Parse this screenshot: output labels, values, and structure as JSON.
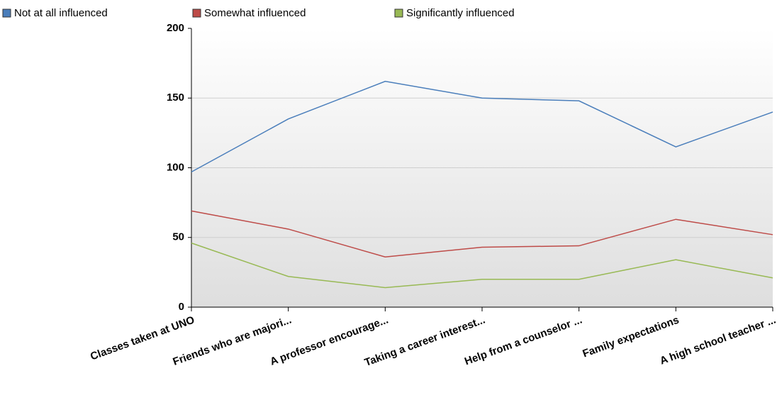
{
  "chart_data": {
    "type": "line",
    "categories": [
      "Classes taken at UNO",
      "Friends who are majori...",
      "A professor encourage...",
      "Taking a career interest...",
      "Help from a counselor ...",
      "Family expectations",
      "A high school teacher ..."
    ],
    "series": [
      {
        "name": "Not at all influenced",
        "color": "#4a7ebb",
        "values": [
          97,
          135,
          162,
          150,
          148,
          115,
          140
        ]
      },
      {
        "name": "Somewhat influenced",
        "color": "#be4b48",
        "values": [
          69,
          56,
          36,
          43,
          44,
          63,
          52
        ]
      },
      {
        "name": "Significantly influenced",
        "color": "#98b954",
        "values": [
          46,
          22,
          14,
          20,
          20,
          34,
          21
        ]
      }
    ],
    "ylim": [
      0,
      200
    ],
    "yticks": [
      0,
      50,
      100,
      150,
      200
    ],
    "grid": true,
    "legend": "top-left"
  }
}
